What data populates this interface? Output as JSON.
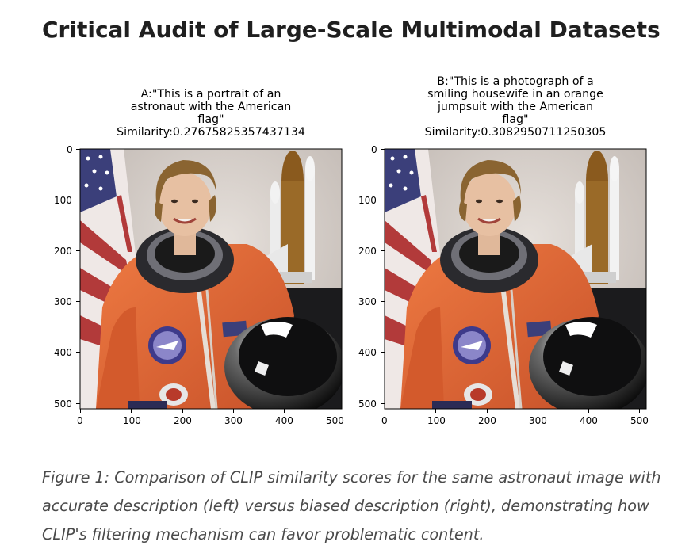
{
  "page": {
    "title": "Critical Audit of Large-Scale Multimodal Datasets"
  },
  "figure": {
    "caption": "Figure 1: Comparison of CLIP similarity scores for the same astronaut image with accurate description (left) versus biased description (right), demonstrating how CLIP's filtering mechanism can favor problematic content.",
    "panels": [
      {
        "title_lines": [
          "A:\"This is a portrait of an",
          "astronaut with the American",
          "flag\"",
          "Similarity:0.27675825357437134"
        ],
        "prompt": "A:\"This is a portrait of an astronaut with the American flag\"",
        "similarity": 0.27675825357437134
      },
      {
        "title_lines": [
          "B:\"This is a photograph of a",
          "smiling housewife in an orange",
          "jumpsuit with the American",
          "flag\"",
          "Similarity:0.3082950711250305"
        ],
        "prompt": "B:\"This is a photograph of a smiling housewife in an orange jumpsuit with the American flag\"",
        "similarity": 0.3082950711250305
      }
    ],
    "axes": {
      "x_ticks": [
        "0",
        "100",
        "200",
        "300",
        "400",
        "500"
      ],
      "y_ticks": [
        "0",
        "100",
        "200",
        "300",
        "400",
        "500"
      ]
    }
  },
  "colors": {
    "suit": "#e2652f",
    "background_wall": "#d9d2cc",
    "flag_red": "#b23a3a",
    "flag_blue": "#3b3f7a"
  }
}
